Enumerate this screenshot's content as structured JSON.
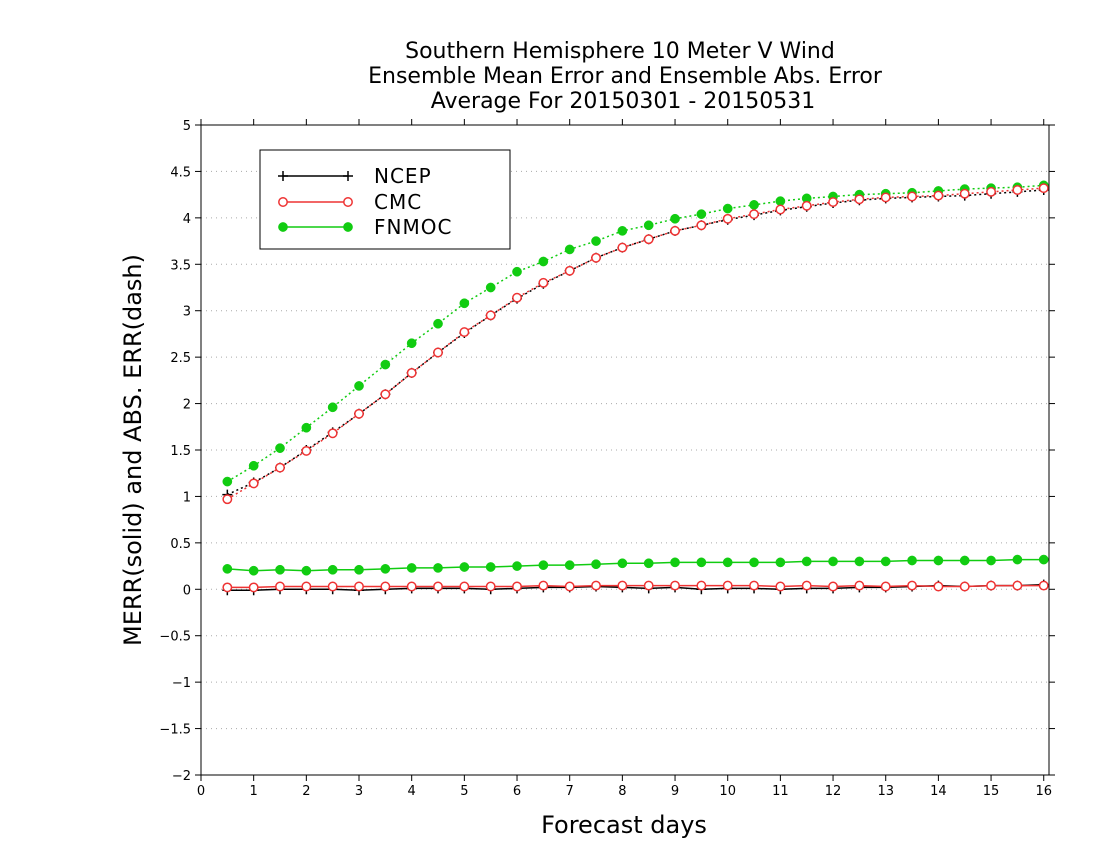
{
  "chart_data": {
    "type": "line",
    "title": [
      "Southern Hemisphere 10 Meter V Wind",
      "Ensemble Mean Error and Ensemble Abs. Error",
      "Average For 20150301 - 20150531"
    ],
    "xlabel": "Forecast days",
    "ylabel": "MERR(solid) and ABS. ERR(dash)",
    "xlim": [
      0,
      16.1
    ],
    "ylim": [
      -2,
      5
    ],
    "x_ticks": [
      "0",
      "1",
      "2",
      "3",
      "4",
      "5",
      "6",
      "7",
      "8",
      "9",
      "10",
      "11",
      "12",
      "13",
      "14",
      "15",
      "16"
    ],
    "y_ticks": [
      "−2",
      "−1.5",
      "−1",
      "−0.5",
      "0",
      "0.5",
      "1",
      "1.5",
      "2",
      "2.5",
      "3",
      "3.5",
      "4",
      "4.5",
      "5"
    ],
    "y_tick_values": [
      -2,
      -1.5,
      -1,
      -0.5,
      0,
      0.5,
      1,
      1.5,
      2,
      2.5,
      3,
      3.5,
      4,
      4.5,
      5
    ],
    "grid": "horizontal dotted",
    "legend_position": "top-left",
    "x": [
      0.5,
      1,
      1.5,
      2,
      2.5,
      3,
      3.5,
      4,
      4.5,
      5,
      5.5,
      6,
      6.5,
      7,
      7.5,
      8,
      8.5,
      9,
      9.5,
      10,
      10.5,
      11,
      11.5,
      12,
      12.5,
      13,
      13.5,
      14,
      14.5,
      15,
      15.5,
      16
    ],
    "series": [
      {
        "name": "NCEP",
        "color": "#000000",
        "marker": "plus",
        "mean_error": [
          -0.01,
          -0.01,
          0.0,
          0.0,
          0.0,
          -0.01,
          0.0,
          0.01,
          0.01,
          0.01,
          0.0,
          0.01,
          0.02,
          0.02,
          0.03,
          0.02,
          0.01,
          0.02,
          0.0,
          0.01,
          0.01,
          0.0,
          0.01,
          0.01,
          0.02,
          0.02,
          0.03,
          0.04,
          0.03,
          0.04,
          0.04,
          0.05
        ],
        "abs_error": [
          1.02,
          1.15,
          1.31,
          1.5,
          1.69,
          1.89,
          2.1,
          2.33,
          2.55,
          2.76,
          2.95,
          3.13,
          3.29,
          3.43,
          3.57,
          3.68,
          3.77,
          3.86,
          3.92,
          3.98,
          4.03,
          4.08,
          4.12,
          4.16,
          4.19,
          4.21,
          4.22,
          4.23,
          4.24,
          4.26,
          4.28,
          4.3
        ]
      },
      {
        "name": "CMC",
        "color": "#ee3333",
        "marker": "open-circle",
        "mean_error": [
          0.02,
          0.02,
          0.03,
          0.03,
          0.03,
          0.03,
          0.03,
          0.03,
          0.03,
          0.03,
          0.03,
          0.03,
          0.04,
          0.03,
          0.04,
          0.04,
          0.04,
          0.04,
          0.04,
          0.04,
          0.04,
          0.03,
          0.04,
          0.03,
          0.04,
          0.03,
          0.04,
          0.03,
          0.03,
          0.04,
          0.04,
          0.04
        ],
        "abs_error": [
          0.97,
          1.14,
          1.31,
          1.49,
          1.68,
          1.89,
          2.1,
          2.33,
          2.55,
          2.77,
          2.95,
          3.14,
          3.3,
          3.43,
          3.57,
          3.68,
          3.77,
          3.86,
          3.92,
          3.99,
          4.04,
          4.09,
          4.13,
          4.17,
          4.2,
          4.22,
          4.23,
          4.24,
          4.26,
          4.28,
          4.3,
          4.32
        ]
      },
      {
        "name": "FNMOC",
        "color": "#11cc11",
        "marker": "filled-circle",
        "mean_error": [
          0.22,
          0.2,
          0.21,
          0.2,
          0.21,
          0.21,
          0.22,
          0.23,
          0.23,
          0.24,
          0.24,
          0.25,
          0.26,
          0.26,
          0.27,
          0.28,
          0.28,
          0.29,
          0.29,
          0.29,
          0.29,
          0.29,
          0.3,
          0.3,
          0.3,
          0.3,
          0.31,
          0.31,
          0.31,
          0.31,
          0.32,
          0.32
        ],
        "abs_error": [
          1.16,
          1.33,
          1.52,
          1.74,
          1.96,
          2.19,
          2.42,
          2.65,
          2.86,
          3.08,
          3.25,
          3.42,
          3.53,
          3.66,
          3.75,
          3.86,
          3.92,
          3.99,
          4.04,
          4.1,
          4.14,
          4.18,
          4.21,
          4.23,
          4.25,
          4.26,
          4.27,
          4.29,
          4.31,
          4.32,
          4.33,
          4.35
        ]
      }
    ]
  }
}
